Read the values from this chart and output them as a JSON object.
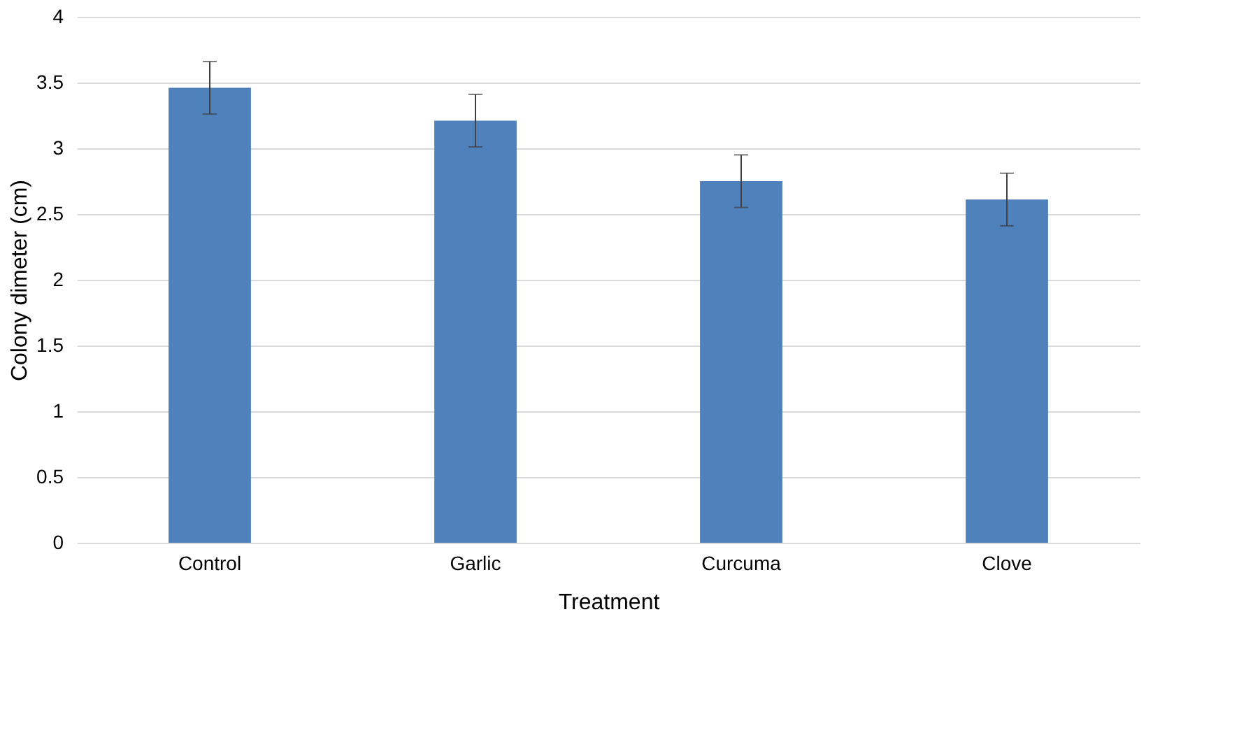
{
  "chart_data": {
    "type": "bar",
    "xlabel": "Treatment",
    "ylabel": "Colony dimeter (cm)",
    "categories": [
      "Control",
      "Garlic",
      "Curcuma",
      "Clove"
    ],
    "values": [
      3.46,
      3.21,
      2.75,
      2.61
    ],
    "errors": [
      0.2,
      0.2,
      0.2,
      0.2
    ],
    "color": "#4f81bd",
    "ylim": [
      0,
      4
    ],
    "yticks": [
      0,
      0.5,
      1,
      1.5,
      2,
      2.5,
      3,
      3.5,
      4
    ],
    "grid": "y"
  }
}
